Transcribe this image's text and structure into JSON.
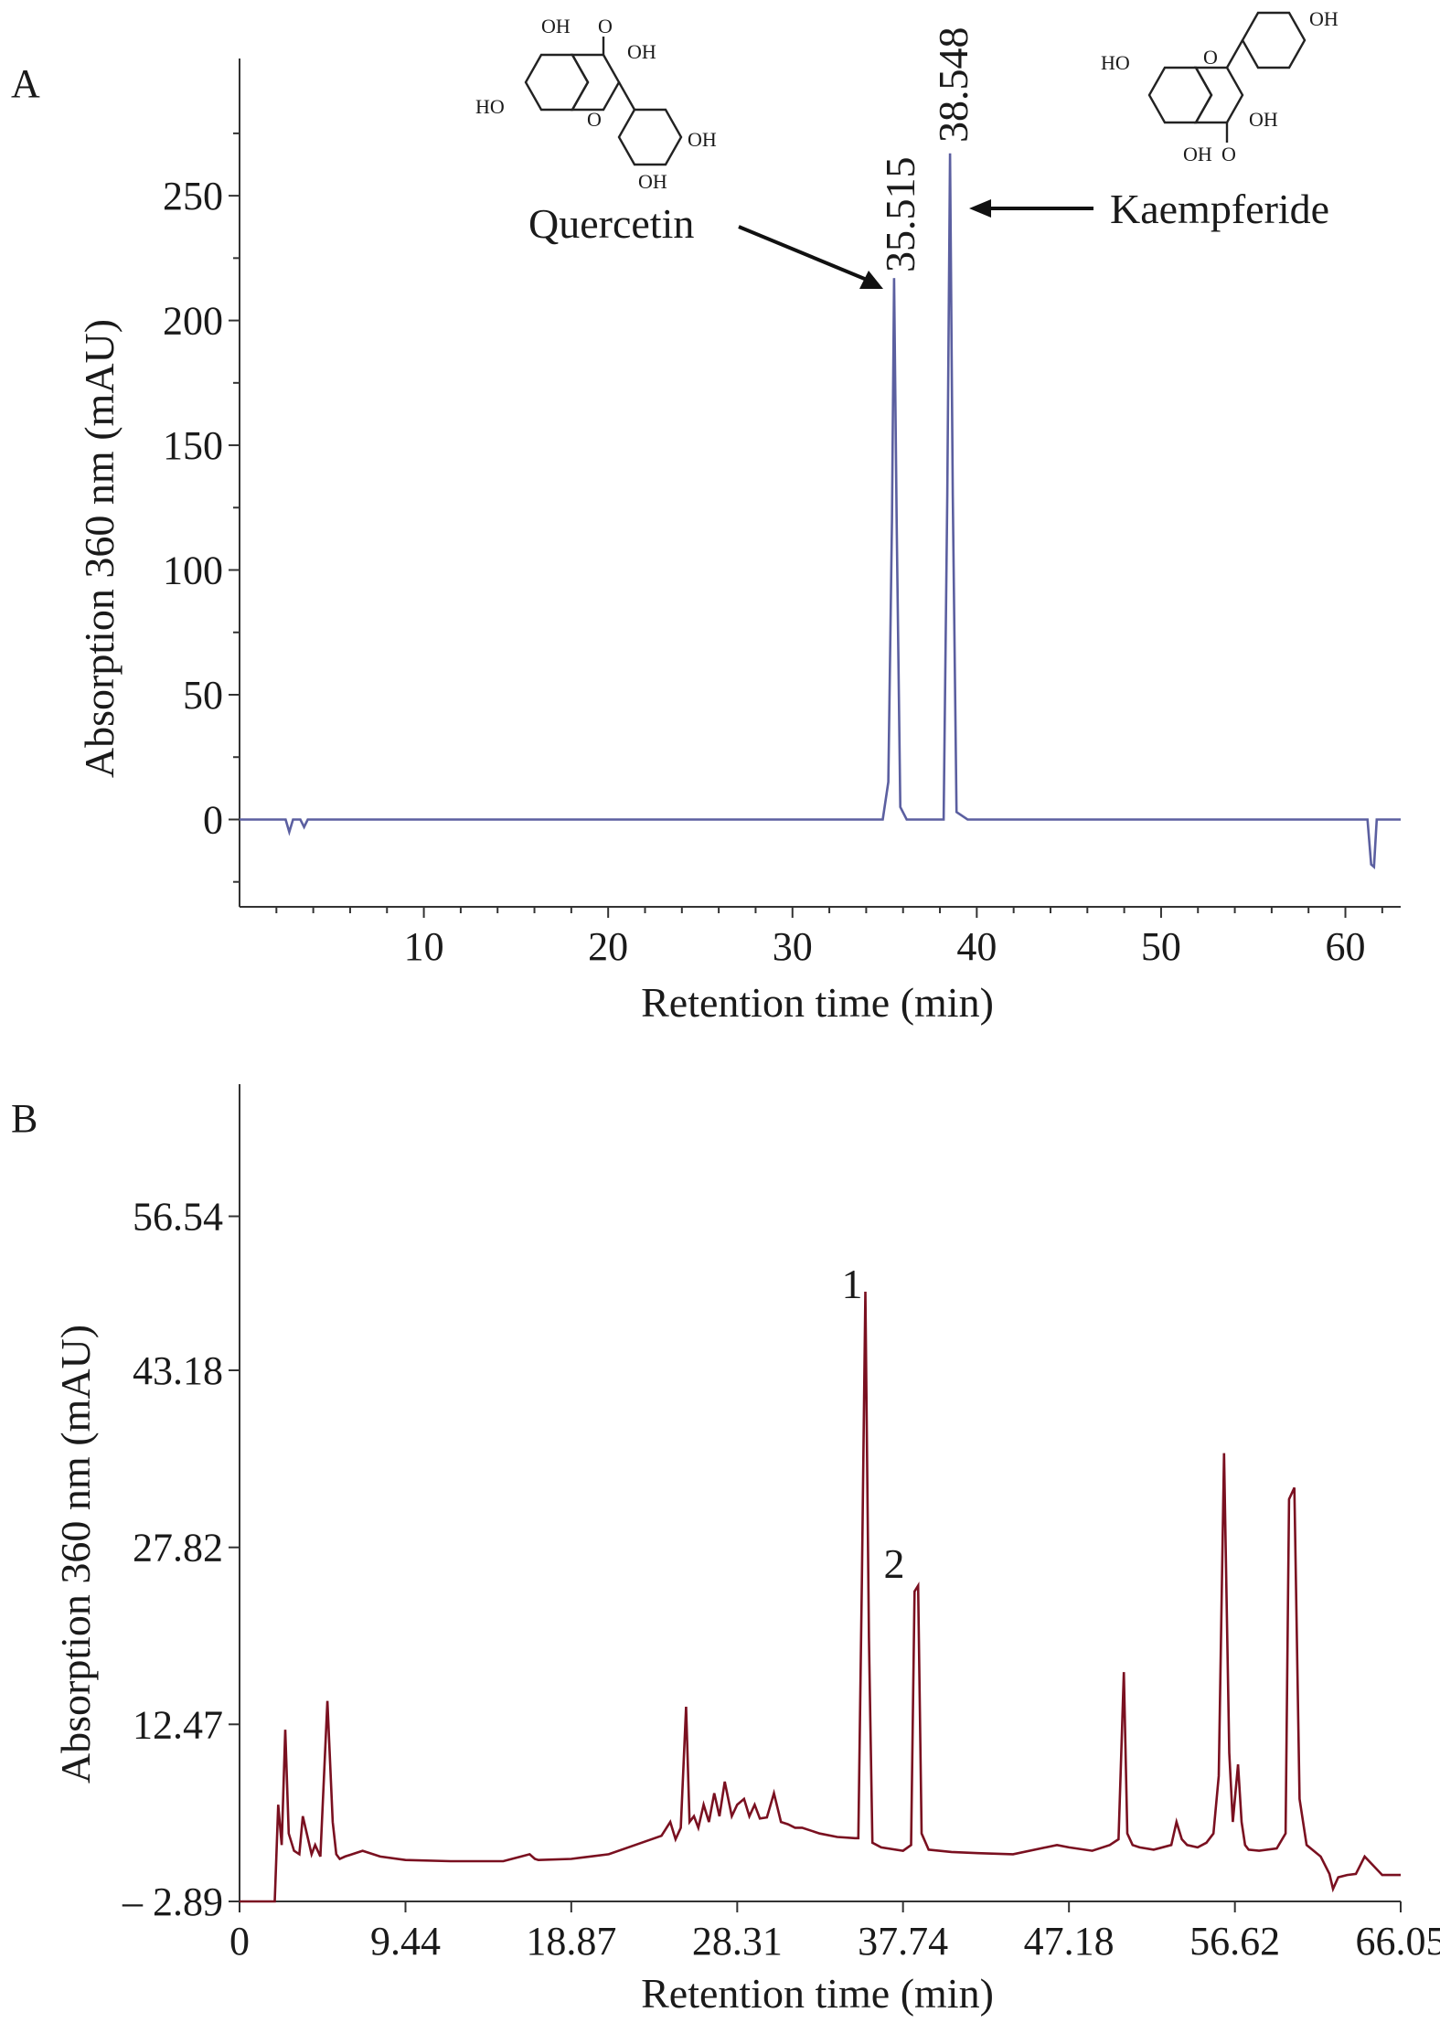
{
  "panels": [
    {
      "id": "A",
      "panel_letter": "A",
      "xlabel": "Retention time (min)",
      "ylabel": "Absorption 360 nm (mAU)",
      "line_color": "#5b5fa0",
      "annotations": {
        "peak1_time": "35.515",
        "peak2_time": "38.548",
        "compound1": "Quercetin",
        "compound2": "Kaempferide"
      },
      "structure_quercetin": {
        "oh_top_left": "OH",
        "o_carbonyl": "O",
        "oh_3": "OH",
        "ho_7": "HO",
        "o_ring": "O",
        "oh_4p": "OH",
        "oh_3p": "OH"
      },
      "structure_kaempferide": {
        "ho_7": "HO",
        "o_ring": "O",
        "oh_4p": "OH",
        "oh_3": "OH",
        "oh_5": "OH",
        "o_carbonyl": "O"
      }
    },
    {
      "id": "B",
      "panel_letter": "B",
      "xlabel": "Retention time (min)",
      "ylabel": "Absorption 360 nm (mAU)",
      "line_color": "#7a1020",
      "annotations": {
        "peak1_num": "1",
        "peak2_num": "2"
      }
    }
  ],
  "chart_data": [
    {
      "type": "line",
      "panel": "A",
      "xlabel": "Retention time (min)",
      "ylabel": "Absorption 360 nm (mAU)",
      "xlim": [
        0,
        63
      ],
      "ylim": [
        -35,
        305
      ],
      "xticks": [
        10,
        20,
        30,
        40,
        50,
        60
      ],
      "yticks": [
        0,
        50,
        100,
        150,
        200,
        250
      ],
      "grid": false,
      "series": [
        {
          "x": [
            0,
            2.5,
            2.7,
            2.9,
            3.3,
            3.5,
            3.7,
            10,
            20,
            34.9,
            35.2,
            35.4,
            35.515,
            35.65,
            35.85,
            36.2,
            38.2,
            38.4,
            38.548,
            38.7,
            38.9,
            39.5,
            50,
            61.2,
            61.4,
            61.55,
            61.7,
            63
          ],
          "y": [
            0,
            0,
            -5,
            0,
            0,
            -3,
            0,
            0,
            0,
            0,
            15,
            120,
            217,
            120,
            5,
            0,
            0,
            130,
            267,
            130,
            3,
            0,
            0,
            0,
            -18,
            -19,
            0,
            0
          ]
        }
      ],
      "annotations": [
        "35.515",
        "38.548",
        "Quercetin",
        "Kaempferide"
      ]
    },
    {
      "type": "line",
      "panel": "B",
      "xlabel": "Retention time (min)",
      "ylabel": "Absorption 360 nm (mAU)",
      "xlim": [
        0,
        66.05
      ],
      "ylim": [
        -2.89,
        68
      ],
      "xticks": [
        0,
        9.44,
        18.87,
        28.31,
        37.74,
        47.18,
        56.62,
        66.05
      ],
      "yticks": [
        -2.89,
        12.47,
        27.82,
        43.18,
        56.54
      ],
      "grid": false,
      "series": [
        {
          "x": [
            0,
            2.0,
            2.2,
            2.4,
            2.6,
            2.8,
            3.1,
            3.4,
            3.6,
            4.1,
            4.3,
            4.6,
            5.0,
            5.3,
            5.5,
            5.7,
            6.0,
            7.0,
            8.0,
            9.44,
            12.0,
            15.0,
            16.5,
            16.8,
            17.0,
            18.87,
            21.0,
            22.5,
            24.0,
            24.5,
            24.8,
            25.1,
            25.4,
            25.6,
            25.85,
            26.1,
            26.4,
            26.7,
            27.0,
            27.3,
            27.6,
            28.0,
            28.31,
            28.7,
            29.0,
            29.3,
            29.6,
            30.0,
            30.4,
            30.8,
            31.2,
            31.6,
            32.0,
            33.0,
            34.0,
            35.0,
            35.2,
            35.4,
            35.6,
            35.8,
            36.0,
            36.5,
            37.74,
            38.2,
            38.4,
            38.6,
            38.8,
            39.2,
            40.5,
            42.0,
            44.0,
            46.5,
            47.18,
            48.5,
            49.5,
            50.0,
            50.3,
            50.5,
            50.8,
            51.2,
            52.0,
            53.0,
            53.3,
            53.6,
            53.9,
            54.5,
            55.0,
            55.4,
            55.7,
            56.0,
            56.3,
            56.5,
            56.8,
            57.0,
            57.2,
            57.4,
            58.0,
            59.0,
            59.5,
            59.7,
            60.0,
            60.3,
            60.7,
            61.5,
            62.0,
            62.2,
            62.5,
            63.0,
            63.5,
            64.0,
            65.0,
            66.05
          ],
          "y": [
            -2.89,
            -2.89,
            5.5,
            2.0,
            12.0,
            3.0,
            1.5,
            1.2,
            4.5,
            1.2,
            2.0,
            1.0,
            14.5,
            4.0,
            1.2,
            0.8,
            1.0,
            1.5,
            1.0,
            0.7,
            0.6,
            0.6,
            1.2,
            0.8,
            0.7,
            0.8,
            1.2,
            2.0,
            2.8,
            4.0,
            2.5,
            3.5,
            14.0,
            4.0,
            4.5,
            3.5,
            5.5,
            4.0,
            6.5,
            4.5,
            7.5,
            4.5,
            5.5,
            6.0,
            4.5,
            5.5,
            4.3,
            4.4,
            6.5,
            4.0,
            3.8,
            3.5,
            3.5,
            3.0,
            2.7,
            2.6,
            2.6,
            25.0,
            50.0,
            20.0,
            2.2,
            1.8,
            1.5,
            2.0,
            24.0,
            24.5,
            3.0,
            1.6,
            1.4,
            1.3,
            1.2,
            2.0,
            1.8,
            1.5,
            2.0,
            2.5,
            17.0,
            3.0,
            2.0,
            1.8,
            1.6,
            2.0,
            4.0,
            2.5,
            2.0,
            1.8,
            2.2,
            3.0,
            8.0,
            36.0,
            10.0,
            4.0,
            9.0,
            4.0,
            2.0,
            1.6,
            1.5,
            1.7,
            3.0,
            32.0,
            33.0,
            6.0,
            2.0,
            1.0,
            -0.5,
            -1.8,
            -0.8,
            -0.6,
            -0.5,
            1.0,
            -0.6,
            -0.6
          ]
        }
      ],
      "annotations": [
        "1",
        "2"
      ]
    }
  ]
}
